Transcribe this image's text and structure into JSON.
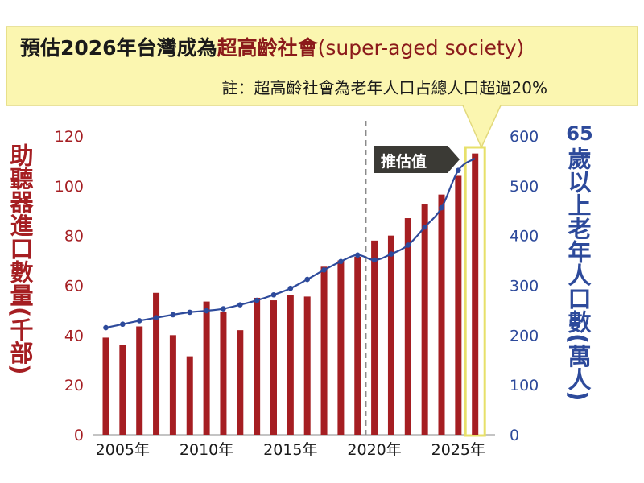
{
  "header": {
    "title_part1": "預估2026年台灣成為",
    "title_emphasis": "超高齡社會",
    "title_english": "(super-aged society)",
    "subtitle": "註：超高齡社會為老年人口占總人口超過20%"
  },
  "estimate_label": "推估值",
  "chart_data": {
    "type": "bar+line",
    "x": [
      2004,
      2005,
      2006,
      2007,
      2008,
      2009,
      2010,
      2011,
      2012,
      2013,
      2014,
      2015,
      2016,
      2017,
      2018,
      2019,
      2020,
      2021,
      2022,
      2023,
      2024,
      2025,
      2026
    ],
    "x_tick_labels": [
      "2005年",
      "2010年",
      "2015年",
      "2020年",
      "2025年"
    ],
    "x_tick_years": [
      2005,
      2010,
      2015,
      2020,
      2025
    ],
    "left_axis": {
      "label": "助聽器進口數量(千部)",
      "range": [
        0,
        120
      ],
      "ticks": [
        0,
        20,
        40,
        60,
        80,
        100,
        120
      ],
      "color": "#a51e22"
    },
    "right_axis": {
      "label_number": "65",
      "label": "歲以上老年人口數(萬人)",
      "range": [
        0,
        600
      ],
      "ticks": [
        0,
        100,
        200,
        300,
        400,
        500,
        600
      ],
      "color": "#2d4a9b"
    },
    "series": [
      {
        "type": "bar",
        "axis": "left",
        "color": "#a51e22",
        "values": [
          39,
          36,
          43.5,
          57,
          40,
          31.5,
          53.5,
          49.5,
          42,
          55,
          54,
          56,
          55.5,
          67.5,
          70,
          71.5,
          78,
          80,
          87,
          92.5,
          96.5,
          104,
          113
        ]
      },
      {
        "type": "line",
        "axis": "right",
        "color": "#2d4a9b",
        "values": [
          215,
          222,
          229,
          235,
          241,
          246,
          249,
          253,
          261,
          270,
          281,
          294,
          312,
          331,
          348,
          361,
          351,
          363,
          381,
          417,
          456,
          531,
          555
        ]
      }
    ],
    "estimate_start_year": 2019.5,
    "highlight_year": 2026
  }
}
